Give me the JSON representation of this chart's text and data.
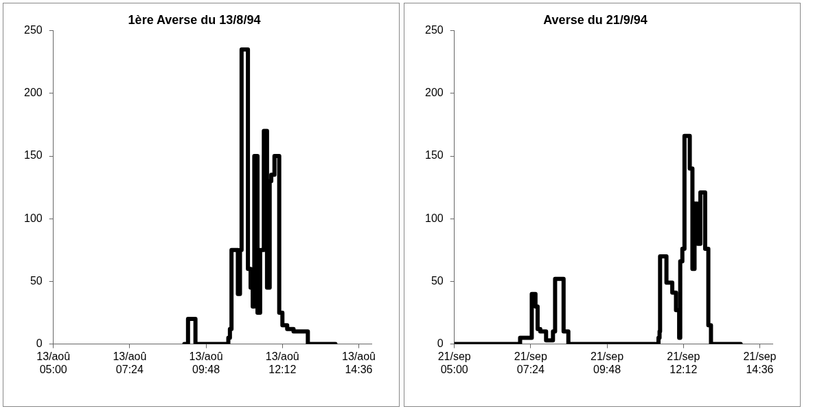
{
  "chart_data": [
    {
      "type": "step",
      "title": "1ère Averse du 13/8/94",
      "xlim": [
        "--08-13T05:00",
        "--08-13T15:00"
      ],
      "xticks": [
        {
          "value": "--08-13T05:00",
          "label": "13/aoû\n05:00"
        },
        {
          "value": "--08-13T07:24",
          "label": "13/aoû\n07:24"
        },
        {
          "value": "--08-13T09:48",
          "label": "13/aoû\n09:48"
        },
        {
          "value": "--08-13T12:12",
          "label": "13/aoû\n12:12"
        },
        {
          "value": "--08-13T14:36",
          "label": "13/aoû\n14:36"
        }
      ],
      "ylim": [
        0,
        250
      ],
      "yticks": [
        0,
        50,
        100,
        150,
        200,
        250
      ],
      "series": [
        {
          "color": "#000000",
          "x": [
            "--08-13T09:07",
            "--08-13T09:14",
            "--08-13T09:28",
            "--08-13T10:30",
            "--08-13T10:33",
            "--08-13T10:36",
            "--08-13T10:48",
            "--08-13T10:52",
            "--08-13T10:55",
            "--08-13T11:07",
            "--08-13T11:12",
            "--08-13T11:16",
            "--08-13T11:19",
            "--08-13T11:25",
            "--08-13T11:30",
            "--08-13T11:37",
            "--08-13T11:43",
            "--08-13T11:48",
            "--08-13T11:51",
            "--08-13T11:57",
            "--08-13T12:06",
            "--08-13T12:12",
            "--08-13T12:21",
            "--08-13T12:33",
            "--08-13T13:00",
            "--08-13T13:52"
          ],
          "values": [
            0,
            20,
            0,
            5,
            12,
            75,
            40,
            75,
            235,
            60,
            45,
            30,
            150,
            25,
            75,
            170,
            45,
            130,
            135,
            150,
            25,
            15,
            12,
            10,
            0,
            0
          ]
        }
      ]
    },
    {
      "type": "step",
      "title": "Averse du 21/9/94",
      "xlim": [
        "--09-21T05:00",
        "--09-21T15:00"
      ],
      "xticks": [
        {
          "value": "--09-21T05:00",
          "label": "21/sep\n05:00"
        },
        {
          "value": "--09-21T07:24",
          "label": "21/sep\n07:24"
        },
        {
          "value": "--09-21T09:48",
          "label": "21/sep\n09:48"
        },
        {
          "value": "--09-21T12:12",
          "label": "21/sep\n12:12"
        },
        {
          "value": "--09-21T14:36",
          "label": "21/sep\n14:36"
        }
      ],
      "ylim": [
        0,
        250
      ],
      "yticks": [
        0,
        50,
        100,
        150,
        200,
        250
      ],
      "series": [
        {
          "color": "#000000",
          "x": [
            "--09-21T05:00",
            "--09-21T07:04",
            "--09-21T07:26",
            "--09-21T07:33",
            "--09-21T07:37",
            "--09-21T07:42",
            "--09-21T07:53",
            "--09-21T08:06",
            "--09-21T08:10",
            "--09-21T08:26",
            "--09-21T08:35",
            "--09-21T11:25",
            "--09-21T11:27",
            "--09-21T11:28",
            "--09-21T11:40",
            "--09-21T11:51",
            "--09-21T11:58",
            "--09-21T12:04",
            "--09-21T12:06",
            "--09-21T12:10",
            "--09-21T12:14",
            "--09-21T12:24",
            "--09-21T12:29",
            "--09-21T12:33",
            "--09-21T12:39",
            "--09-21T12:44",
            "--09-21T12:53",
            "--09-21T12:59",
            "--09-21T13:04",
            "--09-21T14:00"
          ],
          "values": [
            0,
            5,
            40,
            30,
            12,
            10,
            3,
            10,
            52,
            10,
            0,
            5,
            10,
            70,
            49,
            41,
            27,
            5,
            66,
            76,
            166,
            140,
            60,
            112,
            80,
            121,
            76,
            15,
            0,
            0
          ]
        }
      ]
    }
  ]
}
